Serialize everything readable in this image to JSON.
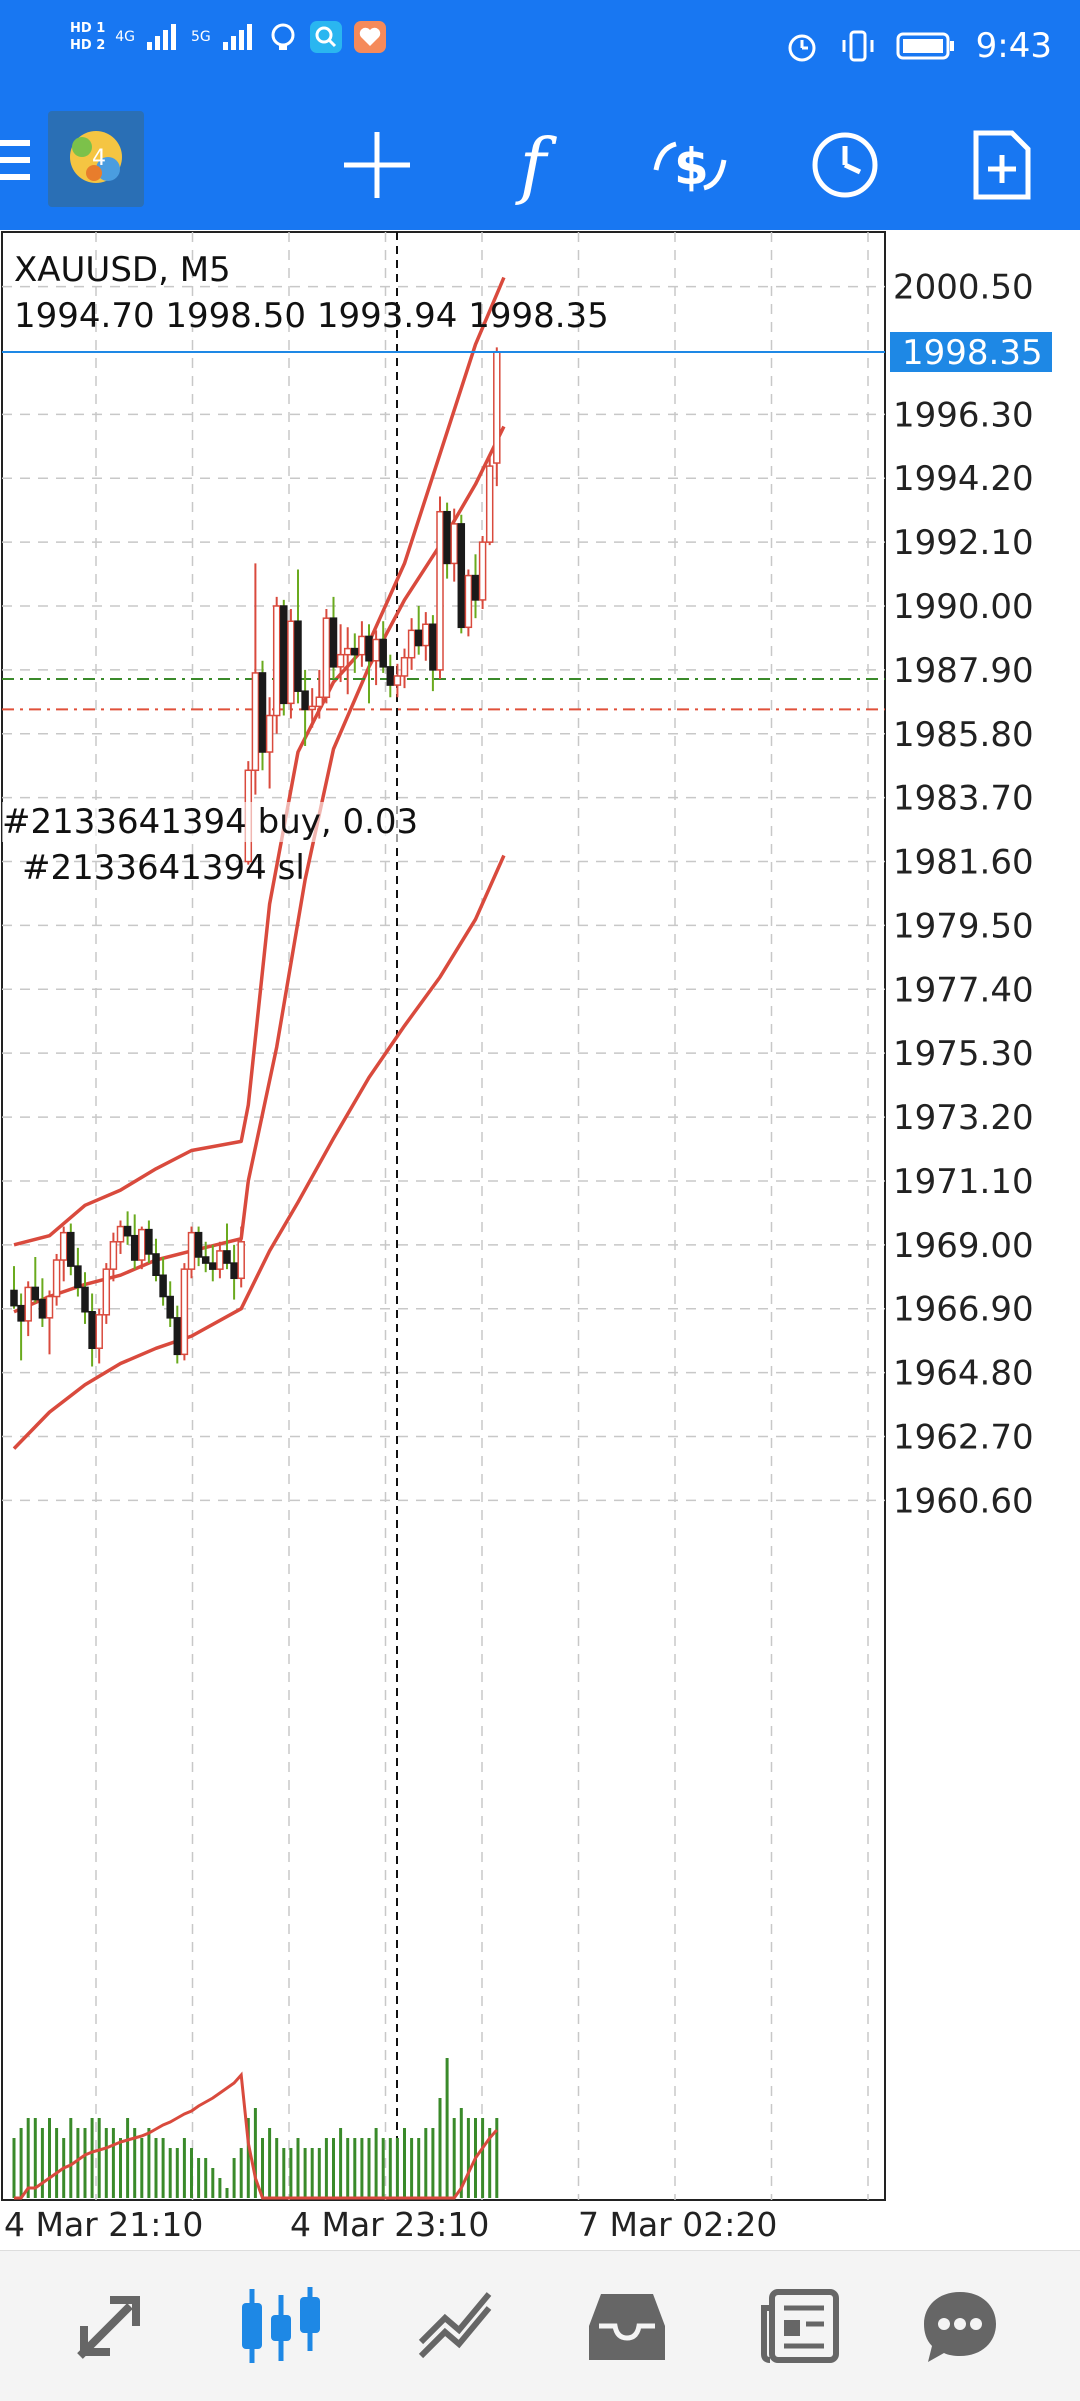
{
  "status_bar": {
    "time": "9:43",
    "hd1": "HD 1",
    "hd2": "HD 2",
    "net1": "4G",
    "net2": "5G",
    "icons": [
      "signal-icon",
      "signal-icon",
      "bulb-icon",
      "search-app-icon",
      "health-app-icon",
      "alarm-icon",
      "vibrate-icon",
      "battery-icon"
    ]
  },
  "toolbar": {
    "icons": [
      "menu-icon",
      "app-logo",
      "crosshair-icon",
      "indicators-icon",
      "trade-icon",
      "timeframe-icon",
      "new-object-icon"
    ],
    "indicator_symbol": "f"
  },
  "chart": {
    "symbol_line": "XAUUSD, M5",
    "ohlc_line": "1994.70 1998.50 1993.94 1998.35",
    "current_price_label": "1998.35",
    "price_axis": [
      "2000.50",
      "1996.30",
      "1994.20",
      "1992.10",
      "1990.00",
      "1987.90",
      "1985.80",
      "1983.70",
      "1981.60",
      "1979.50",
      "1977.40",
      "1975.30",
      "1973.20",
      "1971.10",
      "1969.00",
      "1966.90",
      "1964.80",
      "1962.70",
      "1960.60"
    ],
    "time_axis": [
      "4 Mar 21:10",
      "4 Mar 23:10",
      "7 Mar 02:20"
    ],
    "order_label": "#2133641394 buy, 0.03",
    "sl_label": "#2133641394 sl",
    "colors": {
      "bull": "#d94a3d",
      "bear": "#1a1a1a",
      "wick": "#6aaa1e",
      "band": "#d94a3d",
      "current": "#1e88e5",
      "buy_line": "#3a8a2a",
      "sl_line": "#e0503a"
    }
  },
  "chart_data": {
    "type": "candlestick",
    "symbol": "XAUUSD",
    "timeframe": "M5",
    "last_close": 1998.35,
    "ylim": [
      1958.5,
      2001.0
    ],
    "order_buy_price": 1987.6,
    "order_sl_price": 1986.6,
    "candles": [
      [
        1967.5,
        1968.3,
        1966.9,
        1967.0
      ],
      [
        1967.0,
        1967.4,
        1965.2,
        1966.5
      ],
      [
        1966.5,
        1967.8,
        1966.0,
        1967.6
      ],
      [
        1967.6,
        1968.6,
        1967.1,
        1967.2
      ],
      [
        1967.2,
        1967.9,
        1966.3,
        1966.6
      ],
      [
        1966.6,
        1967.5,
        1965.4,
        1967.3
      ],
      [
        1967.3,
        1968.7,
        1967.0,
        1968.5
      ],
      [
        1968.5,
        1969.6,
        1967.8,
        1969.4
      ],
      [
        1969.4,
        1969.7,
        1968.0,
        1968.3
      ],
      [
        1968.3,
        1968.9,
        1967.3,
        1967.6
      ],
      [
        1967.6,
        1968.1,
        1966.4,
        1966.8
      ],
      [
        1966.8,
        1967.4,
        1965.0,
        1965.6
      ],
      [
        1965.6,
        1966.9,
        1965.1,
        1966.7
      ],
      [
        1966.7,
        1968.4,
        1966.4,
        1968.2
      ],
      [
        1968.2,
        1969.4,
        1967.8,
        1969.1
      ],
      [
        1969.1,
        1969.8,
        1968.7,
        1969.6
      ],
      [
        1969.6,
        1970.1,
        1969.0,
        1969.3
      ],
      [
        1969.3,
        1970.0,
        1968.2,
        1968.5
      ],
      [
        1968.5,
        1969.6,
        1968.2,
        1969.5
      ],
      [
        1969.5,
        1969.8,
        1968.4,
        1968.7
      ],
      [
        1968.7,
        1969.2,
        1967.8,
        1968.0
      ],
      [
        1968.0,
        1968.6,
        1967.0,
        1967.3
      ],
      [
        1967.3,
        1967.8,
        1966.3,
        1966.6
      ],
      [
        1966.6,
        1967.0,
        1965.1,
        1965.4
      ],
      [
        1965.4,
        1968.4,
        1965.2,
        1968.2
      ],
      [
        1968.2,
        1969.6,
        1967.9,
        1969.4
      ],
      [
        1969.4,
        1969.6,
        1968.3,
        1968.6
      ],
      [
        1968.6,
        1969.1,
        1968.1,
        1968.4
      ],
      [
        1968.4,
        1969.0,
        1967.8,
        1968.2
      ],
      [
        1968.2,
        1969.1,
        1967.9,
        1968.8
      ],
      [
        1968.8,
        1969.7,
        1968.2,
        1968.4
      ],
      [
        1968.4,
        1969.0,
        1967.2,
        1967.9
      ],
      [
        1967.9,
        1969.6,
        1967.6,
        1969.1
      ],
      [
        1981.6,
        1984.9,
        1981.5,
        1984.6
      ],
      [
        1984.6,
        1991.4,
        1983.8,
        1987.8
      ],
      [
        1987.8,
        1988.2,
        1984.6,
        1985.2
      ],
      [
        1985.2,
        1987.0,
        1984.0,
        1986.4
      ],
      [
        1986.4,
        1990.3,
        1985.8,
        1990.0
      ],
      [
        1990.0,
        1990.2,
        1986.4,
        1986.8
      ],
      [
        1986.8,
        1989.9,
        1986.3,
        1989.5
      ],
      [
        1989.5,
        1991.2,
        1986.8,
        1987.2
      ],
      [
        1987.2,
        1987.9,
        1985.4,
        1986.6
      ],
      [
        1986.6,
        1987.3,
        1986.0,
        1986.7
      ],
      [
        1986.7,
        1987.9,
        1986.3,
        1987.0
      ],
      [
        1987.0,
        1989.9,
        1986.8,
        1989.6
      ],
      [
        1989.6,
        1990.3,
        1987.6,
        1988.0
      ],
      [
        1988.0,
        1989.4,
        1987.5,
        1988.4
      ],
      [
        1988.4,
        1989.3,
        1987.1,
        1988.6
      ],
      [
        1988.6,
        1989.1,
        1987.8,
        1988.4
      ],
      [
        1988.4,
        1989.5,
        1988.0,
        1989.0
      ],
      [
        1989.0,
        1989.4,
        1986.8,
        1988.2
      ],
      [
        1988.2,
        1989.2,
        1987.4,
        1988.9
      ],
      [
        1988.9,
        1989.5,
        1987.8,
        1988.0
      ],
      [
        1988.0,
        1988.4,
        1987.0,
        1987.4
      ],
      [
        1987.4,
        1988.1,
        1987.0,
        1987.7
      ],
      [
        1987.7,
        1988.6,
        1987.3,
        1988.3
      ],
      [
        1988.3,
        1989.6,
        1987.9,
        1989.2
      ],
      [
        1989.2,
        1990.0,
        1988.4,
        1988.7
      ],
      [
        1988.7,
        1989.8,
        1988.2,
        1989.4
      ],
      [
        1989.4,
        1989.7,
        1987.2,
        1987.9
      ],
      [
        1987.9,
        1993.6,
        1987.6,
        1993.1
      ],
      [
        1993.1,
        1993.4,
        1990.9,
        1991.4
      ],
      [
        1991.4,
        1993.2,
        1990.8,
        1992.7
      ],
      [
        1992.7,
        1993.0,
        1989.1,
        1989.3
      ],
      [
        1989.3,
        1991.2,
        1989.0,
        1991.0
      ],
      [
        1991.0,
        1991.7,
        1989.6,
        1990.2
      ],
      [
        1990.2,
        1992.3,
        1989.9,
        1992.1
      ],
      [
        1992.1,
        1994.9,
        1992.0,
        1994.6
      ],
      [
        1994.7,
        1998.5,
        1993.94,
        1998.35
      ]
    ],
    "bands": {
      "upper": [
        [
          0,
          1969.0
        ],
        [
          5,
          1969.3
        ],
        [
          10,
          1970.3
        ],
        [
          15,
          1970.8
        ],
        [
          20,
          1971.5
        ],
        [
          25,
          1972.1
        ],
        [
          32,
          1972.4
        ],
        [
          33,
          1973.6
        ],
        [
          36,
          1980.2
        ],
        [
          40,
          1985.2
        ],
        [
          45,
          1987.5
        ],
        [
          50,
          1988.8
        ],
        [
          55,
          1991.4
        ],
        [
          60,
          1995.0
        ],
        [
          65,
          1998.6
        ],
        [
          69,
          2000.8
        ]
      ],
      "middle": [
        [
          0,
          1966.8
        ],
        [
          5,
          1967.3
        ],
        [
          10,
          1967.7
        ],
        [
          15,
          1968.0
        ],
        [
          20,
          1968.5
        ],
        [
          25,
          1968.8
        ],
        [
          32,
          1969.2
        ],
        [
          33,
          1971.1
        ],
        [
          37,
          1975.5
        ],
        [
          41,
          1981.0
        ],
        [
          45,
          1985.3
        ],
        [
          50,
          1988.0
        ],
        [
          55,
          1990.2
        ],
        [
          60,
          1992.0
        ],
        [
          65,
          1994.0
        ],
        [
          69,
          1995.9
        ]
      ],
      "lower": [
        [
          0,
          1962.3
        ],
        [
          5,
          1963.5
        ],
        [
          10,
          1964.4
        ],
        [
          15,
          1965.1
        ],
        [
          20,
          1965.6
        ],
        [
          25,
          1966.0
        ],
        [
          32,
          1966.9
        ],
        [
          36,
          1968.8
        ],
        [
          40,
          1970.4
        ],
        [
          45,
          1972.5
        ],
        [
          50,
          1974.5
        ],
        [
          55,
          1976.2
        ],
        [
          60,
          1977.8
        ],
        [
          65,
          1979.7
        ],
        [
          69,
          1981.8
        ]
      ]
    },
    "volume": [
      6,
      7,
      8,
      8,
      7,
      8,
      7,
      6,
      8,
      7,
      7,
      8,
      8,
      7,
      7,
      6,
      8,
      7,
      6,
      7,
      6,
      6,
      5,
      5,
      6,
      5,
      4,
      4,
      3,
      2,
      1,
      4,
      5,
      8,
      9,
      6,
      7,
      6,
      5,
      5,
      6,
      5,
      5,
      5,
      6,
      6,
      7,
      6,
      6,
      6,
      6,
      7,
      6,
      6,
      6,
      7,
      6,
      6,
      7,
      7,
      10,
      14,
      8,
      9,
      8,
      8,
      8,
      7,
      8
    ],
    "volume_ma": [
      0,
      0,
      1,
      1,
      1.5,
      2,
      2.5,
      3,
      3.3,
      3.8,
      4.3,
      4.6,
      4.8,
      5,
      5.3,
      5.6,
      5.8,
      6,
      6.2,
      6.5,
      6.9,
      7.3,
      7.6,
      8,
      8.4,
      8.7,
      9.2,
      9.6,
      10,
      10.5,
      11,
      11.5,
      12.3,
      5.5,
      2,
      0,
      0,
      0,
      0,
      0,
      0,
      0,
      0,
      0,
      0,
      0,
      0,
      0,
      0,
      0,
      0,
      0,
      0,
      0,
      0,
      0,
      0,
      0,
      0,
      0,
      0,
      0,
      0,
      1,
      2.5,
      4,
      5,
      6,
      6.8
    ]
  },
  "bottom_nav": {
    "items": [
      "quotes-icon",
      "chart-icon",
      "trade-icon",
      "history-icon",
      "news-icon",
      "messages-icon"
    ],
    "active": 1
  }
}
